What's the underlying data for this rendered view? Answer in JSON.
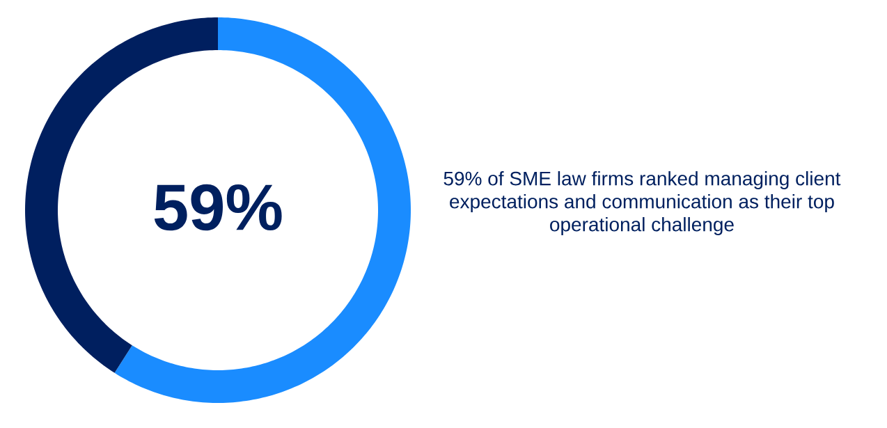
{
  "chart_data": {
    "type": "donut",
    "categories": [
      null,
      null
    ],
    "values": [
      59,
      41
    ],
    "colors": [
      "#1a8cff",
      "#001f5f"
    ],
    "value_labels": [
      "59%",
      null
    ],
    "annotations": [
      "59% of SME law firms ranked managing client expectations and communication as their top operational challenge"
    ]
  }
}
